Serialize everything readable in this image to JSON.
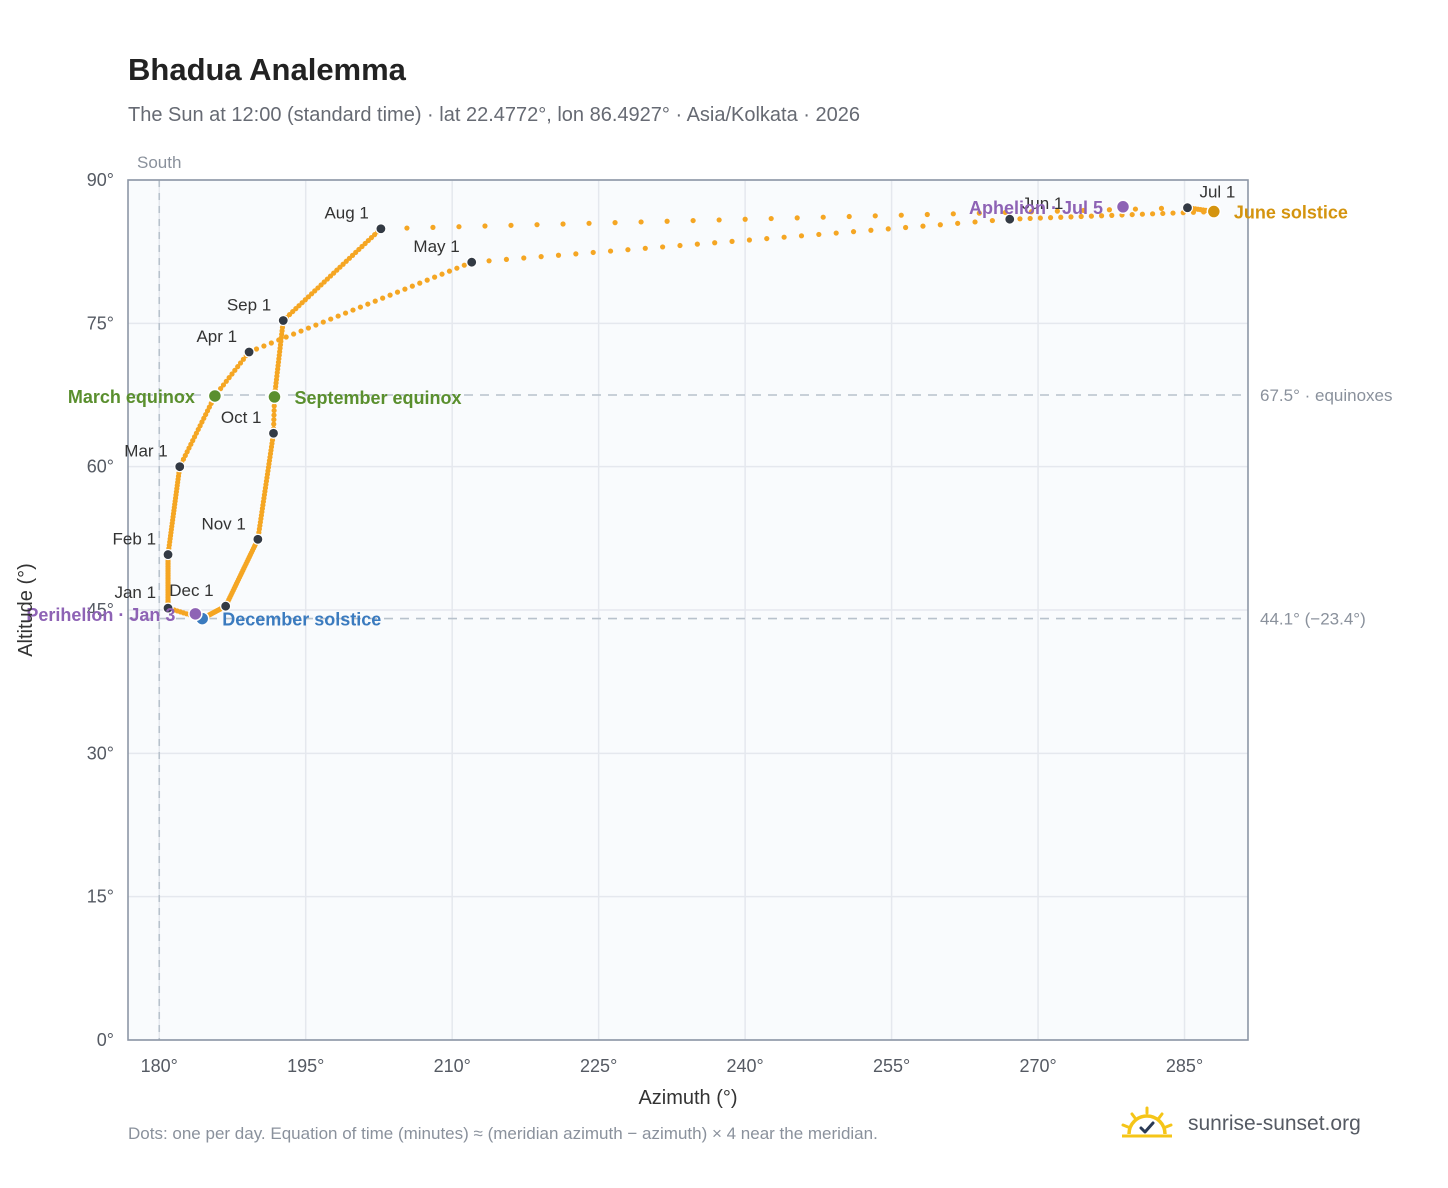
{
  "title": "Bhadua Analemma",
  "subtitle": "The Sun at 12:00 (standard time) · lat 22.4772°, lon 86.4927° · Asia/Kolkata · 2026",
  "footnote": "Dots: one per day. Equation of time (minutes) ≈ (meridian azimuth − azimuth) × 4 near the meridian.",
  "brand": {
    "name": "sunrise-sunset.org",
    "icon": "sun-logo-icon"
  },
  "colors": {
    "path": "#f5a623",
    "month_marker": "#333a44",
    "equinox": "#5a8f2e",
    "solstice_june": "#d4940f",
    "solstice_december": "#3b7bbf",
    "apsis": "#8e63b5",
    "grid": "#e5e8ee",
    "plot_bg": "#f9fbfd",
    "reference_line": "#b8c2cc"
  },
  "chart_data": {
    "type": "scatter",
    "title": "Bhadua Analemma",
    "xlabel": "Azimuth (°)",
    "ylabel": "Altitude (°)",
    "xlim": [
      176.8,
      291.5
    ],
    "ylim": [
      0,
      90
    ],
    "x_ticks": [
      "180°",
      "195°",
      "210°",
      "225°",
      "240°",
      "255°",
      "270°",
      "285°"
    ],
    "x_tick_values": [
      180,
      195,
      210,
      225,
      240,
      255,
      270,
      285
    ],
    "y_ticks": [
      "0°",
      "15°",
      "30°",
      "45°",
      "60°",
      "75°",
      "90°"
    ],
    "y_tick_values": [
      0,
      15,
      30,
      45,
      60,
      75,
      90
    ],
    "grid": true,
    "meridian": {
      "x": 180,
      "label": "South"
    },
    "reference_lines": [
      {
        "y": 67.5,
        "label": "67.5° · equinoxes"
      },
      {
        "y": 44.1,
        "label": "44.1° (−23.4°)"
      }
    ],
    "series": [
      {
        "markers": "one dot per day"
      }
    ],
    "path_anchors": [
      {
        "day": 0,
        "x": 180.9,
        "y": 45.2
      },
      {
        "day": 31,
        "x": 180.9,
        "y": 50.8
      },
      {
        "day": 59,
        "x": 182.1,
        "y": 60.0
      },
      {
        "day": 78,
        "x": 185.7,
        "y": 67.4
      },
      {
        "day": 90,
        "x": 189.2,
        "y": 72.0
      },
      {
        "day": 120,
        "x": 212.0,
        "y": 81.4
      },
      {
        "day": 151,
        "x": 267.1,
        "y": 85.9
      },
      {
        "day": 171,
        "x": 288.0,
        "y": 86.7
      },
      {
        "day": 181,
        "x": 285.3,
        "y": 87.1
      },
      {
        "day": 212,
        "x": 202.7,
        "y": 84.9
      },
      {
        "day": 243,
        "x": 192.7,
        "y": 75.3
      },
      {
        "day": 265,
        "x": 191.8,
        "y": 67.3
      },
      {
        "day": 273,
        "x": 191.7,
        "y": 63.5
      },
      {
        "day": 304,
        "x": 190.1,
        "y": 52.4
      },
      {
        "day": 334,
        "x": 186.8,
        "y": 45.4
      },
      {
        "day": 354,
        "x": 184.4,
        "y": 44.1
      },
      {
        "day": 365,
        "x": 180.9,
        "y": 45.2
      }
    ],
    "month_markers": [
      {
        "label": "Jan 1",
        "x": 180.9,
        "y": 45.2,
        "side": "left"
      },
      {
        "label": "Feb 1",
        "x": 180.9,
        "y": 50.8,
        "side": "left"
      },
      {
        "label": "Mar 1",
        "x": 182.1,
        "y": 60.0,
        "side": "left"
      },
      {
        "label": "Apr 1",
        "x": 189.2,
        "y": 72.0,
        "side": "left"
      },
      {
        "label": "May 1",
        "x": 212.0,
        "y": 81.4,
        "side": "left"
      },
      {
        "label": "Jun 1",
        "x": 267.1,
        "y": 85.9,
        "side": "right"
      },
      {
        "label": "Jul 1",
        "x": 285.3,
        "y": 87.1,
        "side": "right"
      },
      {
        "label": "Aug 1",
        "x": 202.7,
        "y": 84.9,
        "side": "left"
      },
      {
        "label": "Sep 1",
        "x": 192.7,
        "y": 75.3,
        "side": "left"
      },
      {
        "label": "Oct 1",
        "x": 191.7,
        "y": 63.5,
        "side": "left"
      },
      {
        "label": "Nov 1",
        "x": 190.1,
        "y": 52.4,
        "side": "left"
      },
      {
        "label": "Dec 1",
        "x": 186.8,
        "y": 45.4,
        "side": "left"
      }
    ],
    "events": [
      {
        "label": "March equinox",
        "x": 185.7,
        "y": 67.4,
        "color": "#5a8f2e",
        "side": "left"
      },
      {
        "label": "September equinox",
        "x": 191.8,
        "y": 67.3,
        "color": "#5a8f2e",
        "side": "right"
      },
      {
        "label": "June solstice",
        "x": 288.0,
        "y": 86.7,
        "color": "#d4940f",
        "side": "right"
      },
      {
        "label": "December solstice",
        "x": 184.4,
        "y": 44.1,
        "color": "#3b7bbf",
        "side": "right"
      },
      {
        "label": "Perihelion · Jan 3",
        "x": 183.7,
        "y": 44.6,
        "color": "#8e63b5",
        "side": "left"
      },
      {
        "label": "Aphelion · Jul 5",
        "x": 278.7,
        "y": 87.2,
        "color": "#8e63b5",
        "side": "left"
      }
    ]
  }
}
